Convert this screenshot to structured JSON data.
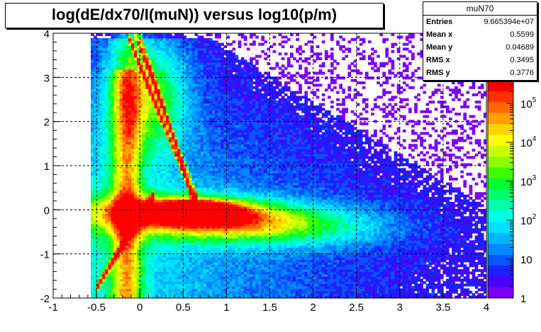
{
  "title": "log(dE/dx70/I(muN)) versus log10(p/m)",
  "stats": {
    "name": "muN70",
    "rows": [
      {
        "label": "Entries",
        "value": "9.665394e+07"
      },
      {
        "label": "Mean x",
        "value": "0.5599"
      },
      {
        "label": "Mean y",
        "value": "0.04689"
      },
      {
        "label": "RMS x",
        "value": "0.3495"
      },
      {
        "label": "RMS y",
        "value": "0.3776"
      }
    ]
  },
  "chart_data": {
    "type": "heatmap",
    "title": "log(dE/dx70/I(muN)) versus log10(p/m)",
    "xlim": [
      -1,
      4
    ],
    "ylim": [
      -2,
      4
    ],
    "zscale": "log",
    "zlim": [
      1,
      100000
    ],
    "grid": true,
    "x_ticks": [
      "-1",
      "-0.5",
      "0",
      "0.5",
      "1",
      "1.5",
      "2",
      "2.5",
      "3",
      "3.5",
      "4"
    ],
    "y_ticks": [
      "-2",
      "-1",
      "0",
      "1",
      "2",
      "3",
      "4"
    ],
    "z_ticks": [
      "1",
      "10",
      "10^2",
      "10^3",
      "10^4",
      "10^5"
    ],
    "stats": {
      "entries": 96653940,
      "mean_x": 0.5599,
      "mean_y": 0.04689,
      "rms_x": 0.3495,
      "rms_y": 0.3776
    },
    "features": [
      {
        "name": "core",
        "x": [
          0.0,
          1.2
        ],
        "y": -0.05
      },
      {
        "name": "minimum-ionizing band",
        "x": [
          0.3,
          4.0
        ],
        "y": -0.4
      },
      {
        "name": "proton band",
        "x": [
          -0.4,
          0.0
        ],
        "y": [
          -1.5,
          0.0
        ]
      },
      {
        "name": "upper bands",
        "x": [
          -0.1,
          0.6
        ],
        "y": [
          3.5,
          0.2
        ]
      }
    ]
  }
}
